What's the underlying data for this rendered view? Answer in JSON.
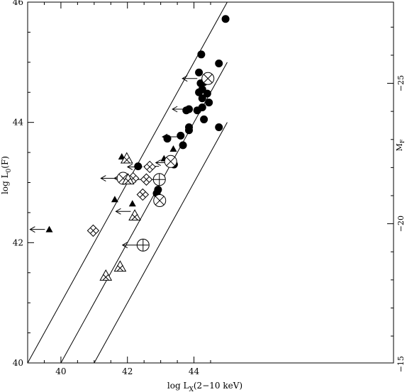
{
  "chart_data": {
    "type": "scatter",
    "xlabel": "log L",
    "xlabel_sub": "X",
    "xlabel_tail": "(2−10 keV)",
    "ylabel": "log L",
    "ylabel_sub": "0",
    "ylabel_tail": "(F)",
    "right_label": "M",
    "right_label_sub": "F",
    "xlim": [
      39.0,
      50.0
    ],
    "ylim": [
      40.0,
      46.0
    ],
    "x_ticks": [
      40,
      42,
      44
    ],
    "y_ticks": [
      40,
      42,
      44,
      46
    ],
    "x_tick_labels": [
      "40",
      "42",
      "44"
    ],
    "y_tick_labels": [
      "40",
      "42",
      "44",
      "46"
    ],
    "right_axis": {
      "mag_ticks": [
        -25,
        -20,
        -15
      ],
      "mag_tick_labels": [
        "−25",
        "−20",
        "−15"
      ],
      "relation": {
        "logL_at_mag": [
          44.65,
          42.05,
          39.98
        ],
        "note": ""
      }
    },
    "diagonal_lines": [
      {
        "x": [
          39.0,
          45.0
        ],
        "y": [
          40.0,
          46.0
        ]
      },
      {
        "x": [
          40.0,
          45.0
        ],
        "y": [
          40.0,
          45.0
        ]
      },
      {
        "x": [
          41.0,
          45.0
        ],
        "y": [
          40.0,
          44.0
        ]
      }
    ],
    "series": [
      {
        "marker": "filled-circle",
        "points": [
          {
            "x": 44.95,
            "y": 45.72
          },
          {
            "x": 44.22,
            "y": 45.13
          },
          {
            "x": 44.75,
            "y": 44.98
          },
          {
            "x": 44.15,
            "y": 44.83
          },
          {
            "x": 44.3,
            "y": 44.67
          },
          {
            "x": 44.2,
            "y": 44.65
          },
          {
            "x": 44.15,
            "y": 44.5
          },
          {
            "x": 44.25,
            "y": 44.55
          },
          {
            "x": 44.4,
            "y": 44.48
          },
          {
            "x": 44.25,
            "y": 44.4
          },
          {
            "x": 44.45,
            "y": 44.33
          },
          {
            "x": 44.25,
            "y": 44.25
          },
          {
            "x": 44.1,
            "y": 44.2
          },
          {
            "x": 43.85,
            "y": 44.22
          },
          {
            "x": 43.77,
            "y": 44.2
          },
          {
            "x": 44.3,
            "y": 44.05
          },
          {
            "x": 44.75,
            "y": 43.92
          },
          {
            "x": 43.85,
            "y": 43.92
          },
          {
            "x": 43.85,
            "y": 43.87
          },
          {
            "x": 43.6,
            "y": 43.78
          },
          {
            "x": 43.2,
            "y": 43.73
          },
          {
            "x": 43.67,
            "y": 43.62
          },
          {
            "x": 43.4,
            "y": 43.3
          },
          {
            "x": 42.32,
            "y": 43.27
          },
          {
            "x": 42.92,
            "y": 42.88
          },
          {
            "x": 42.88,
            "y": 42.82
          }
        ]
      },
      {
        "marker": "filled-triangle",
        "points": [
          {
            "x": 41.83,
            "y": 43.43
          },
          {
            "x": 43.38,
            "y": 43.56
          },
          {
            "x": 43.1,
            "y": 43.4
          },
          {
            "x": 41.62,
            "y": 42.72
          },
          {
            "x": 42.15,
            "y": 42.65
          },
          {
            "x": 39.65,
            "y": 42.22
          }
        ]
      },
      {
        "marker": "open-circle-cross",
        "points": [
          {
            "x": 42.47,
            "y": 41.96
          }
        ]
      },
      {
        "marker": "open-circle-x",
        "points": [
          {
            "x": 44.42,
            "y": 44.73
          },
          {
            "x": 43.3,
            "y": 43.35
          },
          {
            "x": 41.87,
            "y": 43.07
          },
          {
            "x": 42.97,
            "y": 42.7
          }
        ]
      },
      {
        "marker": "open-circle-plus",
        "points": [
          {
            "x": 42.96,
            "y": 43.05
          }
        ]
      },
      {
        "marker": "open-diamond-cross",
        "points": [
          {
            "x": 42.67,
            "y": 43.26
          },
          {
            "x": 42.17,
            "y": 43.07
          },
          {
            "x": 42.57,
            "y": 43.05
          },
          {
            "x": 42.46,
            "y": 42.8
          },
          {
            "x": 40.97,
            "y": 42.2
          }
        ]
      },
      {
        "marker": "open-triangle-cross",
        "points": [
          {
            "x": 41.98,
            "y": 43.4
          },
          {
            "x": 42.02,
            "y": 43.05
          },
          {
            "x": 42.22,
            "y": 42.45
          },
          {
            "x": 41.78,
            "y": 41.6
          },
          {
            "x": 41.35,
            "y": 41.45
          }
        ]
      }
    ],
    "upper_limit_arrows": [
      {
        "x": 44.1,
        "y": 44.73
      },
      {
        "x": 43.8,
        "y": 44.22
      },
      {
        "x": 43.5,
        "y": 43.76
      },
      {
        "x": 43.3,
        "y": 43.33
      },
      {
        "x": 42.95,
        "y": 43.27
      },
      {
        "x": 42.45,
        "y": 43.26
      },
      {
        "x": 42.05,
        "y": 43.07
      },
      {
        "x": 42.95,
        "y": 43.05
      },
      {
        "x": 41.65,
        "y": 43.07
      },
      {
        "x": 42.55,
        "y": 43.05
      },
      {
        "x": 42.1,
        "y": 42.52
      },
      {
        "x": 39.52,
        "y": 42.22
      },
      {
        "x": 42.3,
        "y": 41.96
      }
    ]
  }
}
